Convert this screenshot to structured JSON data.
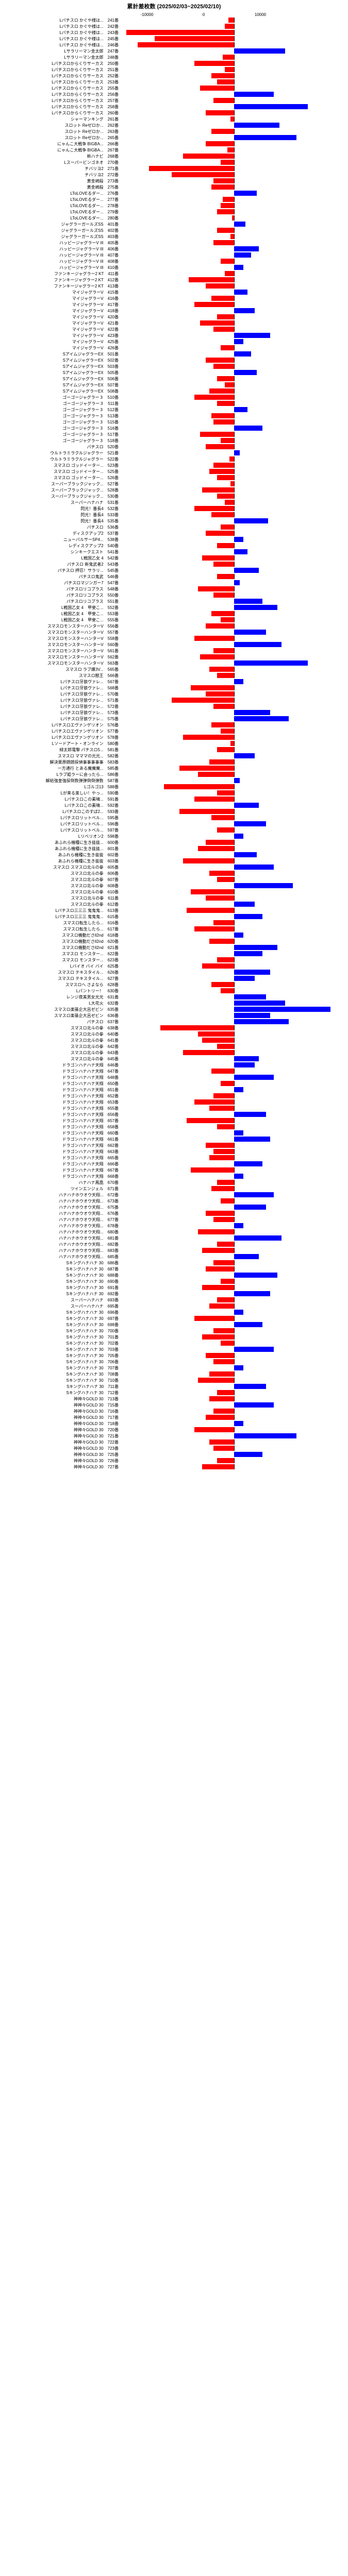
{
  "title": "累計差枚数 (2025/02/03~2025/02/10)",
  "xmin": -10000,
  "xmax": 10000,
  "ticks": [
    -10000,
    0,
    10000
  ],
  "colors": {
    "pos": "#0000ff",
    "neg": "#ff0000",
    "axis": "#000"
  },
  "rows": [
    {
      "l": "Lパチスロ かぐや様は...　241番",
      "v": -500
    },
    {
      "l": "Lパチスロ かぐや様は...　242番",
      "v": -800
    },
    {
      "l": "Lパチスロ かぐや様は...　243番",
      "v": -9500
    },
    {
      "l": "Lパチスロ かぐや様は...　245番",
      "v": -7000
    },
    {
      "l": "Lパチスロ かぐや様は...　246番",
      "v": -8500
    },
    {
      "l": "Lサラリーマン金太郎　247番",
      "v": 4500
    },
    {
      "l": "Lサラリーマン金太郎　248番",
      "v": -1000
    },
    {
      "l": "Lパチスロからくりサーカス　250番",
      "v": -3500
    },
    {
      "l": "Lパチスロからくりサーカス　251番",
      "v": -800
    },
    {
      "l": "Lパチスロからくりサーカス　252番",
      "v": -2000
    },
    {
      "l": "Lパチスロからくりサーカス　253番",
      "v": -1500
    },
    {
      "l": "Lパチスロからくりサーカス　255番",
      "v": -3000
    },
    {
      "l": "Lパチスロからくりサーカス　256番",
      "v": 3500
    },
    {
      "l": "Lパチスロからくりサーカス　257番",
      "v": -1800
    },
    {
      "l": "Lパチスロからくりサーカス　258番",
      "v": 6500
    },
    {
      "l": "Lパチスロからくりサーカス　260番",
      "v": -2500
    },
    {
      "l": "シャーマンキング　261番",
      "v": -300
    },
    {
      "l": "スロット Reゼロか...　262番",
      "v": 4000
    },
    {
      "l": "スロット Reゼロか...　263番",
      "v": -2000
    },
    {
      "l": "スロット Reゼロか...　265番",
      "v": 5500
    },
    {
      "l": "にゃんこ大戦争 BIGBA...　266番",
      "v": -2500
    },
    {
      "l": "にゃんこ大戦争 BIGBA...　267番",
      "v": -600
    },
    {
      "l": "新ハナビ　268番",
      "v": -4500
    },
    {
      "l": "Lスーパービンゴネオ　270番",
      "v": -1200
    },
    {
      "l": "チバリヨ2　271番",
      "v": -7500
    },
    {
      "l": "チバリヨ2　272番",
      "v": -5500
    },
    {
      "l": "黄金崎殺　273番",
      "v": -1800
    },
    {
      "l": "黄金崎殺　275番",
      "v": -2000
    },
    {
      "l": "LToLOVEるダー...　276番",
      "v": 2000
    },
    {
      "l": "LToLOVEるダー...　277番",
      "v": -1000
    },
    {
      "l": "LToLOVEるダー...　278番",
      "v": -1200
    },
    {
      "l": "LToLOVEるダー...　279番",
      "v": -1500
    },
    {
      "l": "LToLOVEるダー...　280番",
      "v": -200
    },
    {
      "l": "ジャグラーガールズSS　401番",
      "v": 1000
    },
    {
      "l": "ジャグラーガールズSS　402番",
      "v": -1500
    },
    {
      "l": "ジャグラーガールズSS　403番",
      "v": -300
    },
    {
      "l": "ハッピージャグラーV III　405番",
      "v": -1800
    },
    {
      "l": "ハッピージャグラーV III　406番",
      "v": 2200
    },
    {
      "l": "ハッピージャグラーV III　407番",
      "v": 1500
    },
    {
      "l": "ハッピージャグラーV III　408番",
      "v": -1200
    },
    {
      "l": "ハッピージャグラーV III　410番",
      "v": 800
    },
    {
      "l": "ファンキージャグラー2 KT　411番",
      "v": -800
    },
    {
      "l": "ファンキージャグラー2 KT　412番",
      "v": -4000
    },
    {
      "l": "ファンキージャグラー2 KT　413番",
      "v": -2500
    },
    {
      "l": "マイジャグラーV　415番",
      "v": 1200
    },
    {
      "l": "マイジャグラーV　416番",
      "v": -2000
    },
    {
      "l": "マイジャグラーV　417番",
      "v": -3500
    },
    {
      "l": "マイジャグラーV　418番",
      "v": 1800
    },
    {
      "l": "マイジャグラーV　420番",
      "v": -1500
    },
    {
      "l": "マイジャグラーV　421番",
      "v": -3000
    },
    {
      "l": "マイジャグラーV　422番",
      "v": -1800
    },
    {
      "l": "マイジャグラーV　423番",
      "v": 3200
    },
    {
      "l": "マイジャグラーV　425番",
      "v": 800
    },
    {
      "l": "マイジャグラーV　426番",
      "v": -1200
    },
    {
      "l": "SアイムジャグラーEX　501番",
      "v": 1500
    },
    {
      "l": "SアイムジャグラーEX　502番",
      "v": -2500
    },
    {
      "l": "SアイムジャグラーEX　503番",
      "v": -1800
    },
    {
      "l": "SアイムジャグラーEX　505番",
      "v": 2000
    },
    {
      "l": "SアイムジャグラーEX　506番",
      "v": -1500
    },
    {
      "l": "SアイムジャグラーEX　507番",
      "v": -800
    },
    {
      "l": "SアイムジャグラーEX　508番",
      "v": -2200
    },
    {
      "l": "ゴーゴージャグラー３　510番",
      "v": -3500
    },
    {
      "l": "ゴーゴージャグラー３　511番",
      "v": -1500
    },
    {
      "l": "ゴーゴージャグラー３　512番",
      "v": 1200
    },
    {
      "l": "ゴーゴージャグラー３　513番",
      "v": -2000
    },
    {
      "l": "ゴーゴージャグラー３　515番",
      "v": -1800
    },
    {
      "l": "ゴーゴージャグラー３　516番",
      "v": 2500
    },
    {
      "l": "ゴーゴージャグラー３　517番",
      "v": -3000
    },
    {
      "l": "ゴーゴージャグラー３　518番",
      "v": -1200
    },
    {
      "l": "パチスロ　520番",
      "v": -2500
    },
    {
      "l": "ウルトラミラクルジャグラー　521番",
      "v": 500
    },
    {
      "l": "ウルトラミラクルジャグラー　522番",
      "v": -400
    },
    {
      "l": "スマスロ ゴッドイーター...　523番",
      "v": -1800
    },
    {
      "l": "スマスロ ゴッドイーター...　525番",
      "v": -2200
    },
    {
      "l": "スマスロ ゴッドイーター...　526番",
      "v": -1500
    },
    {
      "l": "スーパーブラックジャック...　527番",
      "v": -300
    },
    {
      "l": "スーパーブラックジャック...　528番",
      "v": -2800
    },
    {
      "l": "スーパーブラックジャック...　530番",
      "v": -1500
    },
    {
      "l": "スーパーハナハナ　531番",
      "v": -800
    },
    {
      "l": "閃光！番長4　532番",
      "v": -3500
    },
    {
      "l": "閃光！番長4　533番",
      "v": -2000
    },
    {
      "l": "閃光！番長4　535番",
      "v": 3000
    },
    {
      "l": "パチスロ　536番",
      "v": -1200
    },
    {
      "l": "ディスクアップ2　537番",
      "v": -2500
    },
    {
      "l": "ニューパルサーSP4...　538番",
      "v": 800
    },
    {
      "l": "レディスクアップ2　540番",
      "v": -1500
    },
    {
      "l": "シンキークエスト　541番",
      "v": 1200
    },
    {
      "l": "L戦国乙女 4　542番",
      "v": -2800
    },
    {
      "l": "パチスロ 新鬼武者2　543番",
      "v": -1800
    },
    {
      "l": "パチスロ 押忍！サラリ...　545番",
      "v": 2200
    },
    {
      "l": "パチスロ鬼武　546番",
      "v": -1500
    },
    {
      "l": "パチスロマジンガー7　547番",
      "v": 500
    },
    {
      "l": "パチスロリコプラス　548番",
      "v": -3200
    },
    {
      "l": "パチスロリコプラス　550番",
      "v": -1800
    },
    {
      "l": "パチスロリコプラス　551番",
      "v": 2500
    },
    {
      "l": "L戦国乙女 4　甲斐こ...　552番",
      "v": 3800
    },
    {
      "l": "L戦国乙女 4　甲斐こ...　553番",
      "v": -2000
    },
    {
      "l": "L戦国乙女 4　甲斐こ...　555番",
      "v": -1200
    },
    {
      "l": "スマスロモンスターハンターV　556番",
      "v": -2500
    },
    {
      "l": "スマスロモンスターハンターV　557番",
      "v": 2800
    },
    {
      "l": "スマスロモンスターハンターV　558番",
      "v": -3500
    },
    {
      "l": "スマスロモンスターハンターV　560番",
      "v": 4200
    },
    {
      "l": "スマスロモンスターハンターV　561番",
      "v": -1800
    },
    {
      "l": "スマスロモンスターハンターV　562番",
      "v": -3000
    },
    {
      "l": "スマスロモンスターハンターV　563番",
      "v": 6500
    },
    {
      "l": "スマスロ ラブ嬢3V...　565番",
      "v": -2200
    },
    {
      "l": "スマスロ獣王　566番",
      "v": -1500
    },
    {
      "l": "Lパチスロ牙狼ヴァレ...　567番",
      "v": 800
    },
    {
      "l": "Lパチスロ牙狼ヴァレ...　568番",
      "v": -3800
    },
    {
      "l": "Lパチスロ牙狼ヴァレ...　570番",
      "v": -2500
    },
    {
      "l": "Lパチスロ牙狼ヴァレ...　571番",
      "v": -5500
    },
    {
      "l": "Lパチスロ牙狼ヴァレ...　572番",
      "v": -1800
    },
    {
      "l": "Lパチスロ牙狼ヴァレ...　573番",
      "v": 3200
    },
    {
      "l": "Lパチスロ牙狼ヴァレ...　575番",
      "v": 4800
    },
    {
      "l": "Lパチスロエヴァンゲリオン　576番",
      "v": -2000
    },
    {
      "l": "Lパチスロエヴァンゲリオン　577番",
      "v": -1200
    },
    {
      "l": "Lパチスロエヴァンゲリオン　578番",
      "v": -4500
    },
    {
      "l": "Lソードアート・オンライン　580番",
      "v": -300
    },
    {
      "l": "緋太郎電撃 パチスロ5...　581番",
      "v": -1500
    },
    {
      "l": "スマスロ マママの光光...　582番",
      "v": 1800
    },
    {
      "l": "解決栗原朗朗探偵事事事事事　583番",
      "v": -2200
    },
    {
      "l": "一方通行 とある魔魔魔...　585番",
      "v": -4800
    },
    {
      "l": "Lラブ姫ラーに会ったら...　586番",
      "v": -3200
    },
    {
      "l": "解結強皇強探倒数弾弾倒倒弾数　587番",
      "v": 500
    },
    {
      "l": "Lゴルゴ13　588番",
      "v": -6200
    },
    {
      "l": "Lが来る楽しい！やっ...　590番",
      "v": -1500
    },
    {
      "l": "Lパチスロこの素晴...　591番",
      "v": -3500
    },
    {
      "l": "Lパチスロこの素晴...　592番",
      "v": 2200
    },
    {
      "l": "Lパチスロこのすば2...　593番",
      "v": -4800
    },
    {
      "l": "Lパチスロリットベル...　595番",
      "v": -2000
    },
    {
      "l": "Lパチスロリットベル...　596番",
      "v": 2800
    },
    {
      "l": "Lパチスロリットベル...　597番",
      "v": -1500
    },
    {
      "l": "Lリベリオン2　598番",
      "v": 800
    },
    {
      "l": "あふれら機種に生き抜抜...　600番",
      "v": -2500
    },
    {
      "l": "あふれら機種に生き抜抜...　601番",
      "v": -3200
    },
    {
      "l": "あふれら機種に生き抜抜　602番",
      "v": 2000
    },
    {
      "l": "あふれら機種に生き抜抜　603番",
      "v": -4500
    },
    {
      "l": "スマスロ スマスロ北斗の拳　605番",
      "v": 3500
    },
    {
      "l": "スマスロ北斗の拳　606番",
      "v": -2200
    },
    {
      "l": "スマスロ北斗の拳　607番",
      "v": -1500
    },
    {
      "l": "スマスロ北斗の拳　608番",
      "v": 5200
    },
    {
      "l": "スマスロ北斗の拳　610番",
      "v": -3800
    },
    {
      "l": "スマスロ北斗の拳　611番",
      "v": -2500
    },
    {
      "l": "スマスロ北斗の拳　612番",
      "v": 1800
    },
    {
      "l": "Lパチスロ三三三 鬼鬼鬼...　613番",
      "v": -4200
    },
    {
      "l": "Lパチスロ三三三 鬼鬼鬼...　615番",
      "v": 2500
    },
    {
      "l": "スマスロ転生したら...　616番",
      "v": -1800
    },
    {
      "l": "スマスロ転生したら...　617番",
      "v": -3500
    },
    {
      "l": "スマスロ機動ださll2nd　618番",
      "v": 800
    },
    {
      "l": "スマスロ機動ださll2nd　620番",
      "v": -2200
    },
    {
      "l": "スマスロ機動ださll2nd　621番",
      "v": 3800
    },
    {
      "l": "スマスロ モンスター...　622番",
      "v": 2500
    },
    {
      "l": "スマスロ モンスター...　623番",
      "v": -1500
    },
    {
      "l": "Lバイオ バイ バイ　625番",
      "v": -2800
    },
    {
      "l": "スマスロ テキスタイル...　626番",
      "v": 3200
    },
    {
      "l": "スマスロ テキスタイル...　627番",
      "v": 1800
    },
    {
      "l": "スマスロへ さよなら　628番",
      "v": -2000
    },
    {
      "l": "Lパントリー！　630番",
      "v": -1200
    },
    {
      "l": "レンジ夜美男女光光　631番",
      "v": 2800
    },
    {
      "l": "L大花火　632番",
      "v": 4500
    },
    {
      "l": "スマスロ楽篠企大呂ゼビン　635番",
      "v": 8500
    },
    {
      "l": "スマスロ楽篠企大呂ゼビン　636番",
      "v": 3200
    },
    {
      "l": "パチスロ　637番",
      "v": 4800
    },
    {
      "l": "スマスロ北斗の拳　638番",
      "v": -6500
    },
    {
      "l": "スマスロ北斗の拳　640番",
      "v": -3200
    },
    {
      "l": "スマスロ北斗の拳　641番",
      "v": -2800
    },
    {
      "l": "スマスロ北斗の拳　642番",
      "v": -1500
    },
    {
      "l": "スマスロ北斗の拳　643番",
      "v": -4500
    },
    {
      "l": "スマスロ北斗の拳　645番",
      "v": 2200
    },
    {
      "l": "ドラゴンハナハナ天翔　646番",
      "v": 1800
    },
    {
      "l": "ドラゴンハナハナ天翔　647番",
      "v": -2000
    },
    {
      "l": "ドラゴンハナハナ天翔　648番",
      "v": 3500
    },
    {
      "l": "ドラゴンハナハナ天翔　650番",
      "v": -1200
    },
    {
      "l": "ドラゴンハナハナ天翔　651番",
      "v": 800
    },
    {
      "l": "ドラゴンハナハナ天翔　652番",
      "v": -1800
    },
    {
      "l": "ドラゴンハナハナ天翔　653番",
      "v": -3500
    },
    {
      "l": "ドラゴンハナハナ天翔　655番",
      "v": -2200
    },
    {
      "l": "ドラゴンハナハナ天翔　656番",
      "v": 2800
    },
    {
      "l": "ドラゴンハナハナ天翔　657番",
      "v": -4200
    },
    {
      "l": "ドラゴンハナハナ天翔　658番",
      "v": -1500
    },
    {
      "l": "ドラゴンハナハナ天翔　660番",
      "v": 800
    },
    {
      "l": "ドラゴンハナハナ天翔　661番",
      "v": 3200
    },
    {
      "l": "ドラゴンハナハナ天翔　662番",
      "v": -2500
    },
    {
      "l": "ドラゴンハナハナ天翔　663番",
      "v": -1800
    },
    {
      "l": "ドラゴンハナハナ天翔　665番",
      "v": -2200
    },
    {
      "l": "ドラゴンハナハナ天翔　666番",
      "v": 2500
    },
    {
      "l": "ドラゴンハナハナ天翔　667番",
      "v": -3800
    },
    {
      "l": "ドラゴンハナハナ天翔　668番",
      "v": 800
    },
    {
      "l": "ハナハナ鳳凰　670番",
      "v": -1500
    },
    {
      "l": "ツインエンジェル　671番",
      "v": -2000
    },
    {
      "l": "ハナハナホウオウ天翔...　672番",
      "v": 3500
    },
    {
      "l": "ハナハナホウオウ天翔...　673番",
      "v": -1200
    },
    {
      "l": "ハナハナホウオウ天翔...　675番",
      "v": 2800
    },
    {
      "l": "ハナハナホウオウ天翔...　676番",
      "v": -2500
    },
    {
      "l": "ハナハナホウオウ天翔...　677番",
      "v": -1800
    },
    {
      "l": "ハナハナホウオウ天翔...　678番",
      "v": 800
    },
    {
      "l": "ハナハナホウオウ天翔...　680番",
      "v": -3200
    },
    {
      "l": "ハナハナホウオウ天翔...　681番",
      "v": 4200
    },
    {
      "l": "ハナハナホウオウ天翔...　682番",
      "v": -1500
    },
    {
      "l": "ハナハナホウオウ天翔...　683番",
      "v": -2800
    },
    {
      "l": "ハナハナホウオウ天翔...　685番",
      "v": 2200
    },
    {
      "l": "Sキングハナハナ 30　686番",
      "v": -1800
    },
    {
      "l": "Sキングハナハナ 30　687番",
      "v": -2500
    },
    {
      "l": "Sキングハナハナ 30　688番",
      "v": 3800
    },
    {
      "l": "Sキングハナハナ 30　690番",
      "v": -1200
    },
    {
      "l": "Sキングハナハナ 30　691番",
      "v": -2800
    },
    {
      "l": "Sキングハナハナ 30　692番",
      "v": 3200
    },
    {
      "l": "スーパーハナハナ　693番",
      "v": -1500
    },
    {
      "l": "スーパーハナハナ　695番",
      "v": -2200
    },
    {
      "l": "Sキングハナハナ 30　696番",
      "v": 800
    },
    {
      "l": "Sキングハナハナ 30　697番",
      "v": -3500
    },
    {
      "l": "Sキングハナハナ 30　698番",
      "v": 2500
    },
    {
      "l": "Sキングハナハナ 30　700番",
      "v": -1800
    },
    {
      "l": "Sキングハナハナ 30　701番",
      "v": -2800
    },
    {
      "l": "Sキングハナハナ 30　702番",
      "v": -1200
    },
    {
      "l": "Sキングハナハナ 30　703番",
      "v": 3500
    },
    {
      "l": "Sキングハナハナ 30　705番",
      "v": -2500
    },
    {
      "l": "Sキングハナハナ 30　706番",
      "v": -1800
    },
    {
      "l": "Sキングハナハナ 30　707番",
      "v": 800
    },
    {
      "l": "Sキングハナハナ 30　708番",
      "v": -2200
    },
    {
      "l": "Sキングハナハナ 30　710番",
      "v": -3200
    },
    {
      "l": "Sキングハナハナ 30　711番",
      "v": 2800
    },
    {
      "l": "Sキングハナハナ 30　712番",
      "v": -1500
    },
    {
      "l": "神神々GOLD 30　713番",
      "v": -2200
    },
    {
      "l": "神神々GOLD 30　715番",
      "v": 3500
    },
    {
      "l": "神神々GOLD 30　716番",
      "v": -1800
    },
    {
      "l": "神神々GOLD 30　717番",
      "v": -2500
    },
    {
      "l": "神神々GOLD 30　718番",
      "v": 800
    },
    {
      "l": "神神々GOLD 30　720番",
      "v": -3500
    },
    {
      "l": "神神々GOLD 30　721番",
      "v": 5500
    },
    {
      "l": "神神々GOLD 30　722番",
      "v": -2200
    },
    {
      "l": "神神々GOLD 30　723番",
      "v": -1800
    },
    {
      "l": "神神々GOLD 30　725番",
      "v": 2500
    },
    {
      "l": "神神々GOLD 30　726番",
      "v": -1500
    },
    {
      "l": "神神々GOLD 30　727番",
      "v": -2800
    }
  ]
}
